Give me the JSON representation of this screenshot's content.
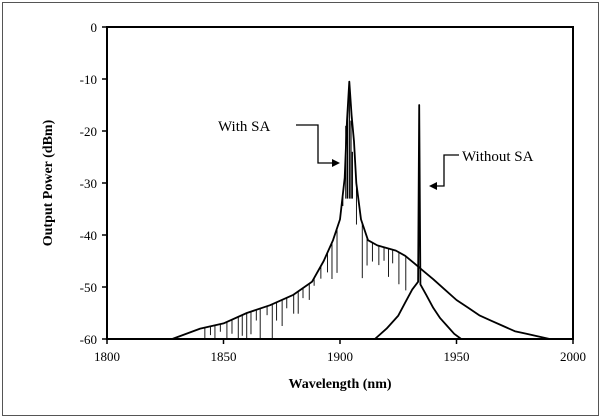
{
  "chart_data": {
    "type": "line",
    "xlabel": "Wavelength (nm)",
    "ylabel": "Output Power (dBm)",
    "xlim": [
      1800,
      2000
    ],
    "ylim": [
      -60,
      0
    ],
    "xticks": [
      1800,
      1850,
      1900,
      1950,
      2000
    ],
    "yticks": [
      0,
      -10,
      -20,
      -30,
      -40,
      -50,
      -60
    ],
    "grid": false,
    "legend": "none",
    "series": [
      {
        "name": "With SA",
        "color": "#000000",
        "x": [
          1828,
          1840,
          1850,
          1860,
          1870,
          1880,
          1888,
          1893,
          1897,
          1900,
          1902,
          1903,
          1904,
          1905,
          1906,
          1907,
          1909,
          1912,
          1916,
          1920,
          1924,
          1928,
          1932,
          1936,
          1940,
          1945,
          1950,
          1955,
          1960,
          1965,
          1970,
          1975,
          1980,
          1985,
          1990
        ],
        "y": [
          -60,
          -58,
          -57,
          -55,
          -53.5,
          -51.5,
          -49,
          -45,
          -41,
          -37,
          -29,
          -18,
          -10.5,
          -17,
          -22,
          -30,
          -37,
          -41,
          -42,
          -42.5,
          -43,
          -44,
          -45.5,
          -47,
          -48.5,
          -50.5,
          -52.5,
          -54,
          -55.5,
          -56.5,
          -57.5,
          -58.5,
          -59,
          -59.5,
          -60
        ]
      },
      {
        "name": "Without SA",
        "color": "#000000",
        "x": [
          1915,
          1920,
          1925,
          1928,
          1931,
          1933.5,
          1934,
          1934.5,
          1937,
          1940,
          1943,
          1946,
          1949,
          1952
        ],
        "y": [
          -60,
          -58,
          -55.5,
          -53,
          -50.5,
          -49,
          -15,
          -49.5,
          -51.5,
          -54,
          -56,
          -57.5,
          -59,
          -60
        ]
      }
    ],
    "annotations": [
      {
        "text": "With SA",
        "target": [
          1904,
          -27
        ]
      },
      {
        "text": "Without SA",
        "target": [
          1933,
          -32
        ]
      }
    ]
  }
}
